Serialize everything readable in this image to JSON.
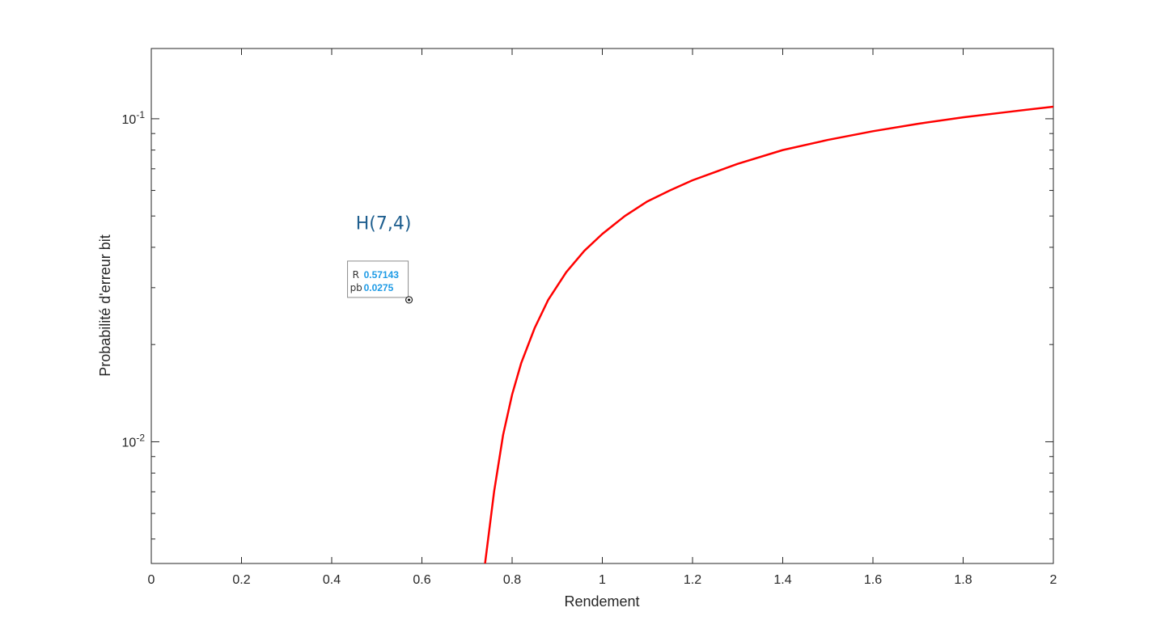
{
  "chart_data": {
    "type": "line",
    "xlabel": "Rendement",
    "ylabel": "Probabilité d'erreur bit",
    "xlim": [
      0,
      2
    ],
    "ylim": [
      0.0042,
      0.165
    ],
    "yscale": "log",
    "grid": false,
    "x_ticks": [
      "0",
      "0.2",
      "0.4",
      "0.6",
      "0.8",
      "1",
      "1.2",
      "1.4",
      "1.6",
      "1.8",
      "2"
    ],
    "y_ticks": [
      {
        "value": 0.01,
        "base": "10",
        "exp": "-2"
      },
      {
        "value": 0.1,
        "base": "10",
        "exp": "-1"
      }
    ],
    "series": [
      {
        "color": "#ff0000",
        "x": [
          0.74,
          0.76,
          0.78,
          0.8,
          0.82,
          0.85,
          0.88,
          0.92,
          0.96,
          1.0,
          1.05,
          1.1,
          1.15,
          1.2,
          1.3,
          1.4,
          1.5,
          1.6,
          1.7,
          1.8,
          1.9,
          2.0
        ],
        "y": [
          0.0042,
          0.007,
          0.0105,
          0.014,
          0.0175,
          0.0225,
          0.0275,
          0.0335,
          0.039,
          0.044,
          0.05,
          0.0555,
          0.06,
          0.0645,
          0.0725,
          0.08,
          0.086,
          0.0915,
          0.0965,
          0.101,
          0.105,
          0.109
        ]
      }
    ],
    "annotations": [
      {
        "text": "H(7,4)",
        "x": 0.515,
        "y": 0.0455
      }
    ],
    "datatip": {
      "x": 0.57143,
      "y": 0.0275,
      "x_key": "R",
      "x_value": "0.57143",
      "y_key": "pb",
      "y_value": "0.0275"
    }
  }
}
